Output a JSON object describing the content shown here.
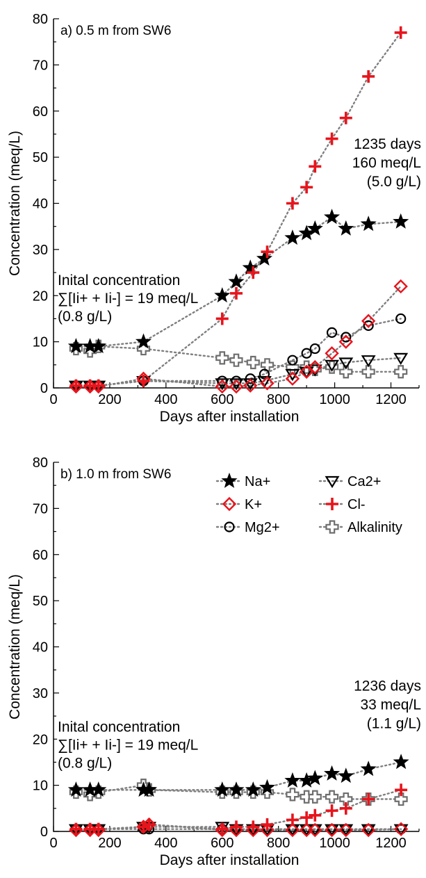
{
  "chart_data": [
    {
      "type": "scatter",
      "panel_label": "a) 0.5 m from SW6",
      "xlabel": "Days after installation",
      "ylabel": "Concentration (meq/L)",
      "xlim": [
        0,
        1300
      ],
      "ylim": [
        0,
        80
      ],
      "xticks": [
        0,
        200,
        400,
        600,
        800,
        1000,
        1200
      ],
      "yticks": [
        0,
        10,
        20,
        30,
        40,
        50,
        60,
        70,
        80
      ],
      "annotations": {
        "left": [
          "Inital concentration",
          "∑[Ii+ + Ii-] = 19 meq/L",
          "(0.8 g/L)"
        ],
        "right": [
          "1235 days",
          "160 meq/L",
          "(5.0 g/L)"
        ]
      },
      "series": [
        {
          "name": "Na+",
          "marker": "star",
          "x": [
            80,
            130,
            160,
            320,
            600,
            650,
            700,
            750,
            850,
            900,
            930,
            990,
            1040,
            1120,
            1235
          ],
          "y": [
            9,
            9,
            9,
            10,
            20,
            23,
            26,
            28,
            32.5,
            33.5,
            34.5,
            37,
            34.5,
            35.5,
            36
          ]
        },
        {
          "name": "K+",
          "marker": "diamond",
          "x": [
            80,
            130,
            160,
            320,
            600,
            650,
            700,
            760,
            850,
            900,
            930,
            990,
            1040,
            1120,
            1235
          ],
          "y": [
            0.3,
            0.3,
            0.3,
            2,
            0.3,
            0.3,
            0.5,
            1,
            2,
            3.5,
            4.5,
            7.5,
            10,
            14.5,
            22
          ]
        },
        {
          "name": "Mg2+",
          "marker": "circle",
          "x": [
            80,
            130,
            160,
            320,
            600,
            650,
            700,
            750,
            850,
            900,
            930,
            990,
            1040,
            1120,
            1235
          ],
          "y": [
            0.5,
            0.5,
            0.5,
            1.5,
            1.5,
            1.5,
            2,
            3,
            6,
            7.5,
            8.5,
            12,
            11,
            13.5,
            15
          ]
        },
        {
          "name": "Ca2+",
          "marker": "triangle-down",
          "x": [
            80,
            130,
            160,
            320,
            600,
            650,
            700,
            750,
            850,
            900,
            930,
            990,
            1040,
            1120,
            1235
          ],
          "y": [
            0.5,
            0.5,
            0.5,
            1.5,
            1,
            1,
            1,
            1.5,
            3,
            3.5,
            4,
            5,
            5.5,
            6,
            6.5
          ]
        },
        {
          "name": "Cl-",
          "marker": "plus",
          "x": [
            80,
            130,
            160,
            320,
            600,
            650,
            710,
            760,
            850,
            900,
            930,
            990,
            1040,
            1120,
            1235
          ],
          "y": [
            0.5,
            0.5,
            0.5,
            1.5,
            15,
            20.5,
            25,
            29.5,
            40,
            43.5,
            48,
            54,
            58.5,
            67.5,
            77
          ]
        },
        {
          "name": "Alkalinity",
          "marker": "cross",
          "x": [
            80,
            130,
            160,
            320,
            600,
            650,
            710,
            760,
            850,
            900,
            930,
            990,
            1040,
            1120,
            1235
          ],
          "y": [
            8.5,
            8,
            9,
            8.5,
            6.5,
            6,
            5.5,
            5,
            4.5,
            4.5,
            4,
            4.5,
            3.5,
            3.5,
            3.5
          ]
        }
      ]
    },
    {
      "type": "scatter",
      "panel_label": "b) 1.0 m from SW6",
      "xlabel": "Days after installation",
      "ylabel": "Concentration (meq/L)",
      "xlim": [
        0,
        1300
      ],
      "ylim": [
        0,
        80
      ],
      "xticks": [
        0,
        200,
        400,
        600,
        800,
        1000,
        1200
      ],
      "yticks": [
        0,
        10,
        20,
        30,
        40,
        50,
        60,
        70,
        80
      ],
      "annotations": {
        "left": [
          "Inital concentration",
          "∑[Ii+ + Ii-] = 19 meq/L",
          "(0.8 g/L)"
        ],
        "right": [
          "1236 days",
          "33 meq/L",
          "(1.1 g/L)"
        ]
      },
      "legend": {
        "placement": "top-right",
        "columns": 2,
        "order": [
          "Na+",
          "Ca2+",
          "K+",
          "Cl-",
          "Mg2+",
          "Alkalinity"
        ]
      },
      "series": [
        {
          "name": "Na+",
          "marker": "star",
          "x": [
            80,
            130,
            160,
            320,
            340,
            600,
            650,
            710,
            760,
            850,
            900,
            930,
            990,
            1040,
            1120,
            1236
          ],
          "y": [
            9,
            9,
            9,
            9,
            9,
            9,
            9,
            9,
            9.5,
            11,
            11,
            11.5,
            12.5,
            12,
            13.5,
            15
          ]
        },
        {
          "name": "K+",
          "marker": "diamond",
          "x": [
            80,
            130,
            160,
            320,
            340,
            600,
            650,
            710,
            760,
            850,
            900,
            930,
            990,
            1040,
            1120,
            1236
          ],
          "y": [
            0.3,
            0.3,
            0.3,
            1,
            1.5,
            0.3,
            0.3,
            0.3,
            0.3,
            0.3,
            0.3,
            0.3,
            0.3,
            0.3,
            0.3,
            0.5
          ]
        },
        {
          "name": "Mg2+",
          "marker": "circle",
          "x": [
            80,
            130,
            160,
            320,
            340,
            600,
            650,
            710,
            760,
            850,
            900,
            930,
            990,
            1040,
            1120,
            1236
          ],
          "y": [
            0.5,
            0.5,
            0.5,
            0.5,
            0.5,
            0.5,
            0.5,
            0.5,
            0.5,
            0.5,
            0.5,
            0.5,
            0.5,
            0.5,
            0.5,
            0.5
          ]
        },
        {
          "name": "Ca2+",
          "marker": "triangle-down",
          "x": [
            80,
            130,
            160,
            320,
            340,
            600,
            650,
            710,
            760,
            850,
            900,
            930,
            990,
            1040,
            1120,
            1236
          ],
          "y": [
            0.5,
            0.5,
            0.5,
            1,
            1,
            1,
            0.5,
            0.5,
            0.5,
            0.5,
            0.5,
            0.5,
            0.5,
            0.5,
            0.5,
            0.5
          ]
        },
        {
          "name": "Cl-",
          "marker": "plus",
          "x": [
            80,
            130,
            160,
            320,
            340,
            600,
            650,
            710,
            760,
            850,
            900,
            930,
            990,
            1040,
            1120,
            1236
          ],
          "y": [
            0.5,
            0.5,
            0.5,
            1,
            1.5,
            0.5,
            1,
            1,
            1.5,
            2.5,
            3,
            3.5,
            4.5,
            5,
            7,
            9
          ]
        },
        {
          "name": "Alkalinity",
          "marker": "cross",
          "x": [
            80,
            130,
            160,
            320,
            340,
            600,
            650,
            710,
            760,
            850,
            900,
            930,
            990,
            1040,
            1120,
            1236
          ],
          "y": [
            8.5,
            8,
            8.5,
            10,
            9,
            8.5,
            8.5,
            8.5,
            8.5,
            8,
            7.5,
            7.5,
            7.5,
            7,
            7,
            7
          ]
        }
      ]
    }
  ],
  "series_styles": {
    "Na+": {
      "color": "#000000",
      "filled": true
    },
    "K+": {
      "color": "#e8141c",
      "filled": false
    },
    "Mg2+": {
      "color": "#000000",
      "filled": false
    },
    "Ca2+": {
      "color": "#000000",
      "filled": false
    },
    "Cl-": {
      "color": "#e8141c",
      "filled": true
    },
    "Alkalinity": {
      "color": "#6e6e6e",
      "filled": false
    },
    "line_color": "#7f7f7f"
  }
}
